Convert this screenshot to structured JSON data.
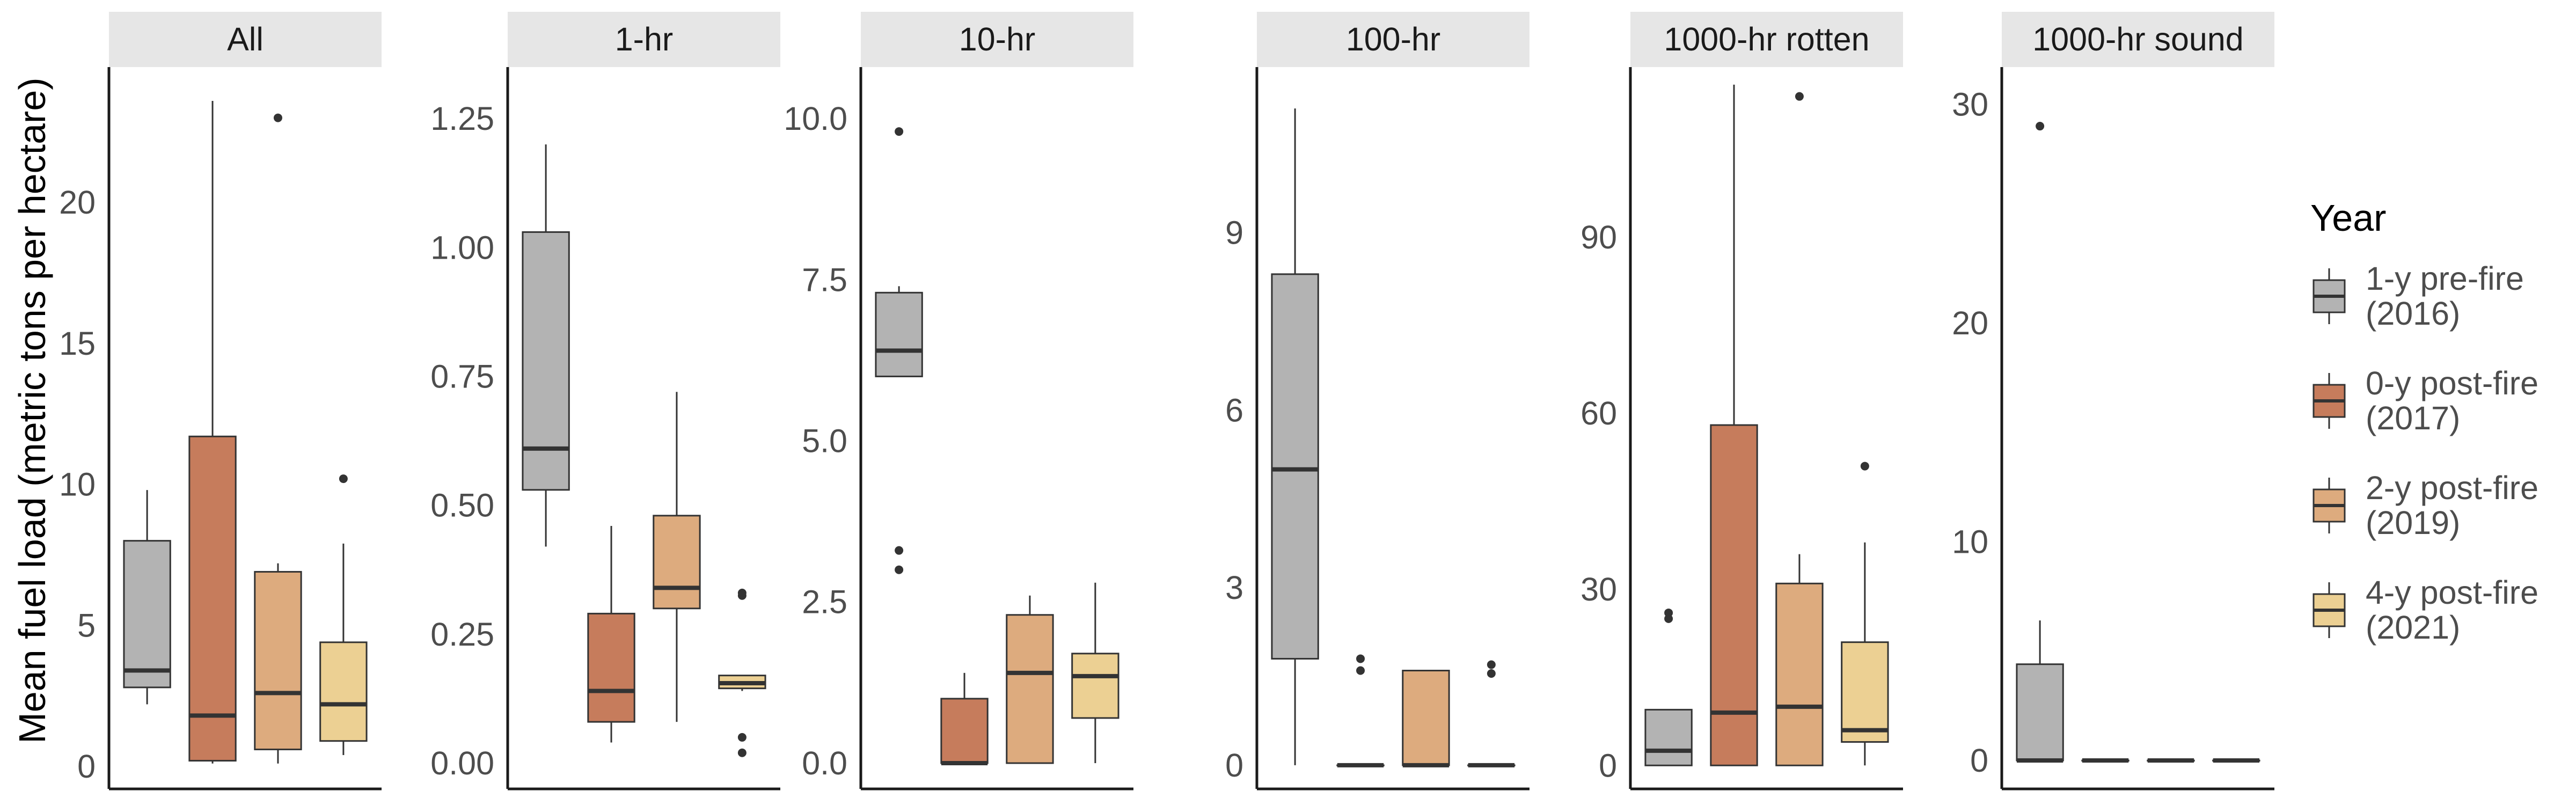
{
  "chart_data": {
    "type": "boxplot",
    "ylabel": "Mean fuel load (metric tons per hectare)",
    "legend": {
      "title": "Year",
      "position": "right",
      "entries": [
        {
          "line1": "1-y pre-fire",
          "line2": "(2016)",
          "color": "#b3b3b3"
        },
        {
          "line1": "0-y post-fire",
          "line2": "(2017)",
          "color": "#c67c5c"
        },
        {
          "line1": "2-y post-fire",
          "line2": "(2019)",
          "color": "#ddab7e"
        },
        {
          "line1": "4-y post-fire",
          "line2": "(2021)",
          "color": "#ecd093"
        }
      ]
    },
    "facets": [
      {
        "label": "All",
        "ylim": [
          -0.8,
          24.8
        ],
        "ticks": [
          0,
          5,
          10,
          15,
          20
        ],
        "tick_labels": [
          "0",
          "5",
          "10",
          "15",
          "20"
        ],
        "boxes": [
          {
            "whisker_low": 2.2,
            "q1": 2.8,
            "median": 3.4,
            "q3": 8.0,
            "whisker_high": 9.8,
            "outliers": []
          },
          {
            "whisker_low": 0.1,
            "q1": 0.2,
            "median": 1.8,
            "q3": 11.7,
            "whisker_high": 23.6,
            "outliers": []
          },
          {
            "whisker_low": 0.1,
            "q1": 0.6,
            "median": 2.6,
            "q3": 6.9,
            "whisker_high": 7.2,
            "outliers": [
              23.0
            ]
          },
          {
            "whisker_low": 0.4,
            "q1": 0.9,
            "median": 2.2,
            "q3": 4.4,
            "whisker_high": 7.9,
            "outliers": [
              10.2
            ]
          }
        ]
      },
      {
        "label": "1-hr",
        "ylim": [
          -0.05,
          1.35
        ],
        "ticks": [
          0,
          0.25,
          0.5,
          0.75,
          1.0,
          1.25
        ],
        "tick_labels": [
          "0.00",
          "0.25",
          "0.50",
          "0.75",
          "1.00",
          "1.25"
        ],
        "boxes": [
          {
            "whisker_low": 0.42,
            "q1": 0.53,
            "median": 0.61,
            "q3": 1.03,
            "whisker_high": 1.2,
            "outliers": []
          },
          {
            "whisker_low": 0.04,
            "q1": 0.08,
            "median": 0.14,
            "q3": 0.29,
            "whisker_high": 0.46,
            "outliers": []
          },
          {
            "whisker_low": 0.08,
            "q1": 0.3,
            "median": 0.34,
            "q3": 0.48,
            "whisker_high": 0.72,
            "outliers": []
          },
          {
            "whisker_low": 0.14,
            "q1": 0.145,
            "median": 0.155,
            "q3": 0.17,
            "whisker_high": 0.17,
            "outliers": [
              0.33,
              0.325,
              0.05,
              0.02
            ]
          }
        ]
      },
      {
        "label": "10-hr",
        "ylim": [
          -0.4,
          10.8
        ],
        "ticks": [
          0,
          2.5,
          5.0,
          7.5,
          10.0
        ],
        "tick_labels": [
          "0.0",
          "2.5",
          "5.0",
          "7.5",
          "10.0"
        ],
        "boxes": [
          {
            "whisker_low": 6.0,
            "q1": 6.0,
            "median": 6.4,
            "q3": 7.3,
            "whisker_high": 7.4,
            "outliers": [
              9.8,
              3.3,
              3.0
            ]
          },
          {
            "whisker_low": 0.0,
            "q1": 0.0,
            "median": 0.0,
            "q3": 1.0,
            "whisker_high": 1.4,
            "outliers": []
          },
          {
            "whisker_low": 0.0,
            "q1": 0.0,
            "median": 1.4,
            "q3": 2.3,
            "whisker_high": 2.6,
            "outliers": []
          },
          {
            "whisker_low": 0.0,
            "q1": 0.7,
            "median": 1.35,
            "q3": 1.7,
            "whisker_high": 2.8,
            "outliers": []
          }
        ]
      },
      {
        "label": "100-hr",
        "ylim": [
          -0.4,
          11.8
        ],
        "ticks": [
          0,
          3,
          6,
          9
        ],
        "tick_labels": [
          "0",
          "3",
          "6",
          "9"
        ],
        "boxes": [
          {
            "whisker_low": 0.0,
            "q1": 1.8,
            "median": 5.0,
            "q3": 8.3,
            "whisker_high": 11.1,
            "outliers": []
          },
          {
            "whisker_low": 0.0,
            "q1": 0.0,
            "median": 0.0,
            "q3": 0.0,
            "whisker_high": 0.0,
            "outliers": [
              1.8,
              1.6
            ]
          },
          {
            "whisker_low": 0.0,
            "q1": 0.0,
            "median": 0.0,
            "q3": 1.6,
            "whisker_high": 1.6,
            "outliers": []
          },
          {
            "whisker_low": 0.0,
            "q1": 0.0,
            "median": 0.0,
            "q3": 0.0,
            "whisker_high": 0.0,
            "outliers": [
              1.7,
              1.55
            ]
          }
        ]
      },
      {
        "label": "1000-hr rotten",
        "ylim": [
          -4,
          119
        ],
        "ticks": [
          0,
          30,
          60,
          90
        ],
        "tick_labels": [
          "0",
          "30",
          "60",
          "90"
        ],
        "boxes": [
          {
            "whisker_low": 0.0,
            "q1": 0.0,
            "median": 2.5,
            "q3": 9.5,
            "whisker_high": 9.5,
            "outliers": [
              26.0,
              25.0
            ]
          },
          {
            "whisker_low": 0.0,
            "q1": 0.0,
            "median": 9.0,
            "q3": 58.0,
            "whisker_high": 116.0,
            "outliers": []
          },
          {
            "whisker_low": 0.0,
            "q1": 0.0,
            "median": 10.0,
            "q3": 31.0,
            "whisker_high": 36.0,
            "outliers": [
              114.0
            ]
          },
          {
            "whisker_low": 0.0,
            "q1": 4.0,
            "median": 6.0,
            "q3": 21.0,
            "whisker_high": 38.0,
            "outliers": [
              51.0
            ]
          }
        ]
      },
      {
        "label": "1000-hr sound",
        "ylim": [
          -1.3,
          31.7
        ],
        "ticks": [
          0,
          10,
          20,
          30
        ],
        "tick_labels": [
          "0",
          "10",
          "20",
          "30"
        ],
        "boxes": [
          {
            "whisker_low": 0.0,
            "q1": 0.0,
            "median": 0.0,
            "q3": 4.4,
            "whisker_high": 6.4,
            "outliers": [
              29.0
            ]
          },
          {
            "whisker_low": 0.0,
            "q1": 0.0,
            "median": 0.0,
            "q3": 0.0,
            "whisker_high": 0.0,
            "outliers": []
          },
          {
            "whisker_low": 0.0,
            "q1": 0.0,
            "median": 0.0,
            "q3": 0.0,
            "whisker_high": 0.0,
            "outliers": []
          },
          {
            "whisker_low": 0.0,
            "q1": 0.0,
            "median": 0.0,
            "q3": 0.0,
            "whisker_high": 0.0,
            "outliers": []
          }
        ]
      }
    ]
  }
}
